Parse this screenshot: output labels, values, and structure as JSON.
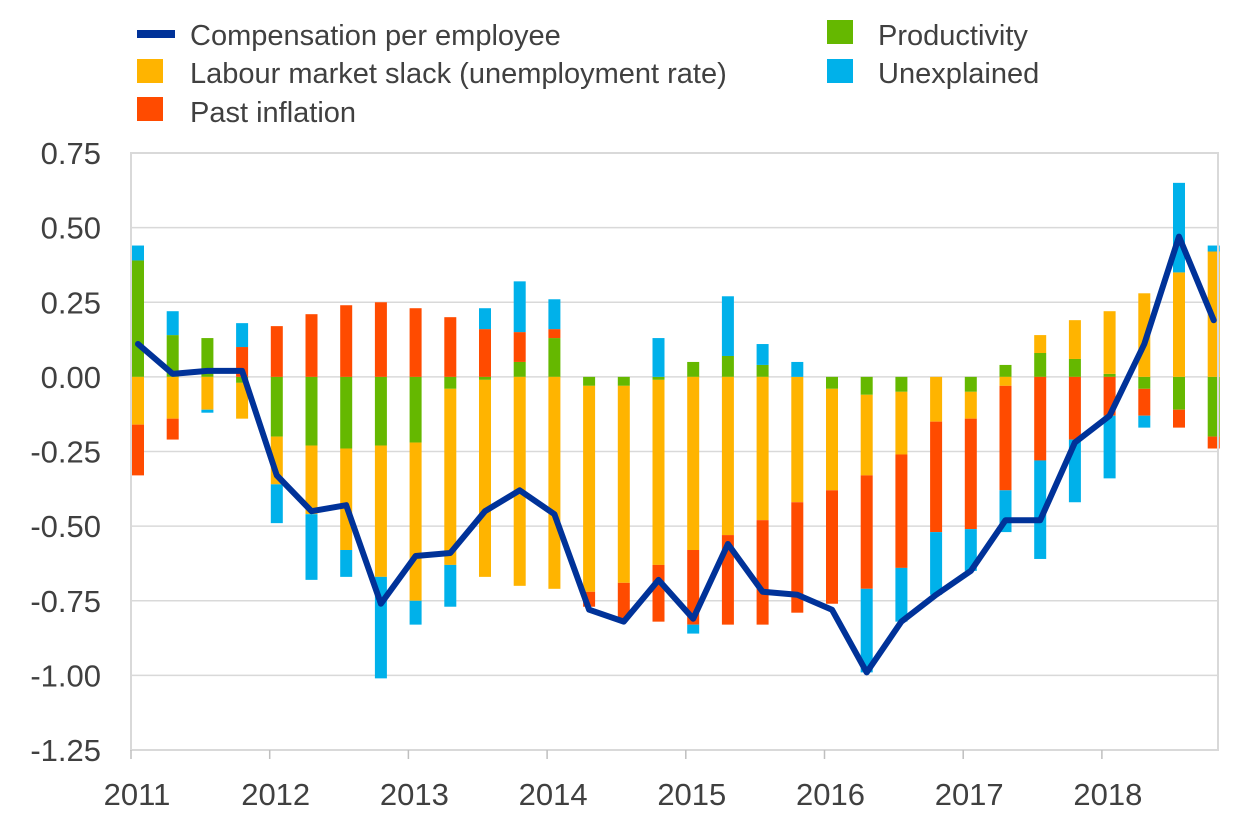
{
  "chart_data": {
    "type": "bar",
    "subtype": "stacked-bar-with-line",
    "ylim": [
      -1.25,
      0.75
    ],
    "yticks": [
      "0.75",
      "0.50",
      "0.25",
      "0.00",
      "-0.25",
      "-0.50",
      "-0.75",
      "-1.00",
      "-1.25"
    ],
    "ytick_values": [
      0.75,
      0.5,
      0.25,
      0,
      -0.25,
      -0.5,
      -0.75,
      -1.0,
      -1.25
    ],
    "xtick_labels": [
      "2011",
      "2012",
      "2013",
      "2014",
      "2015",
      "2016",
      "2017",
      "2018"
    ],
    "grid": true,
    "legend_position": "top",
    "categories": [
      "2011Q1",
      "2011Q2",
      "2011Q3",
      "2011Q4",
      "2012Q1",
      "2012Q2",
      "2012Q3",
      "2012Q4",
      "2013Q1",
      "2013Q2",
      "2013Q3",
      "2013Q4",
      "2014Q1",
      "2014Q2",
      "2014Q3",
      "2014Q4",
      "2015Q1",
      "2015Q2",
      "2015Q3",
      "2015Q4",
      "2016Q1",
      "2016Q2",
      "2016Q3",
      "2016Q4",
      "2017Q1",
      "2017Q2",
      "2017Q3",
      "2017Q4",
      "2018Q1",
      "2018Q2",
      "2018Q3",
      "2018Q4"
    ],
    "line": {
      "name": "Compensation per employee",
      "color": "#003299",
      "values": [
        0.11,
        0.01,
        0.02,
        0.02,
        -0.33,
        -0.45,
        -0.43,
        -0.76,
        -0.6,
        -0.59,
        -0.45,
        -0.38,
        -0.46,
        -0.78,
        -0.82,
        -0.68,
        -0.81,
        -0.56,
        -0.72,
        -0.73,
        -0.78,
        -0.99,
        -0.82,
        -0.73,
        -0.65,
        -0.48,
        -0.48,
        -0.22,
        -0.13,
        0.11,
        0.47,
        0.19
      ]
    },
    "series": [
      {
        "name": "Productivity",
        "color": "#65B800",
        "values": [
          0.39,
          0.14,
          0.13,
          -0.02,
          -0.2,
          -0.23,
          -0.24,
          -0.23,
          -0.22,
          -0.04,
          -0.01,
          0.05,
          0.13,
          -0.03,
          -0.03,
          -0.01,
          0.05,
          0.07,
          0.04,
          0.0,
          -0.04,
          -0.06,
          -0.05,
          0.0,
          -0.05,
          0.04,
          0.08,
          0.06,
          0.01,
          -0.04,
          -0.11,
          -0.2
        ]
      },
      {
        "name": "Labour market slack (unemployment rate)",
        "color": "#FFB400",
        "values": [
          -0.16,
          -0.14,
          -0.11,
          -0.12,
          -0.16,
          -0.23,
          -0.34,
          -0.44,
          -0.53,
          -0.59,
          -0.66,
          -0.7,
          -0.71,
          -0.69,
          -0.66,
          -0.62,
          -0.58,
          -0.53,
          -0.48,
          -0.42,
          -0.34,
          -0.27,
          -0.21,
          -0.15,
          -0.09,
          -0.03,
          0.06,
          0.13,
          0.21,
          0.28,
          0.35,
          0.42
        ]
      },
      {
        "name": "Past inflation",
        "color": "#FF4B00",
        "values": [
          -0.17,
          -0.07,
          0.0,
          0.1,
          0.17,
          0.21,
          0.24,
          0.25,
          0.23,
          0.2,
          0.16,
          0.1,
          0.03,
          -0.05,
          -0.12,
          -0.19,
          -0.25,
          -0.3,
          -0.35,
          -0.37,
          -0.38,
          -0.38,
          -0.38,
          -0.37,
          -0.37,
          -0.35,
          -0.28,
          -0.21,
          -0.13,
          -0.09,
          -0.06,
          -0.04
        ]
      },
      {
        "name": "Unexplained",
        "color": "#00B1EA",
        "values": [
          0.05,
          0.08,
          -0.01,
          0.08,
          -0.13,
          -0.22,
          -0.09,
          -0.34,
          -0.08,
          -0.14,
          0.07,
          0.17,
          0.1,
          0.0,
          0.0,
          0.13,
          -0.03,
          0.2,
          0.07,
          0.05,
          0.0,
          -0.28,
          -0.18,
          -0.21,
          -0.14,
          -0.14,
          -0.33,
          -0.21,
          -0.21,
          -0.04,
          0.3,
          0.02
        ]
      }
    ],
    "legend": [
      {
        "label": "Compensation per employee",
        "kind": "line",
        "color": "#003299"
      },
      {
        "label": "Labour market slack (unemployment rate)",
        "kind": "box",
        "color": "#FFB400"
      },
      {
        "label": "Past inflation",
        "kind": "box",
        "color": "#FF4B00"
      },
      {
        "label": "Productivity",
        "kind": "box",
        "color": "#65B800"
      },
      {
        "label": "Unexplained",
        "kind": "box",
        "color": "#00B1EA"
      }
    ]
  }
}
